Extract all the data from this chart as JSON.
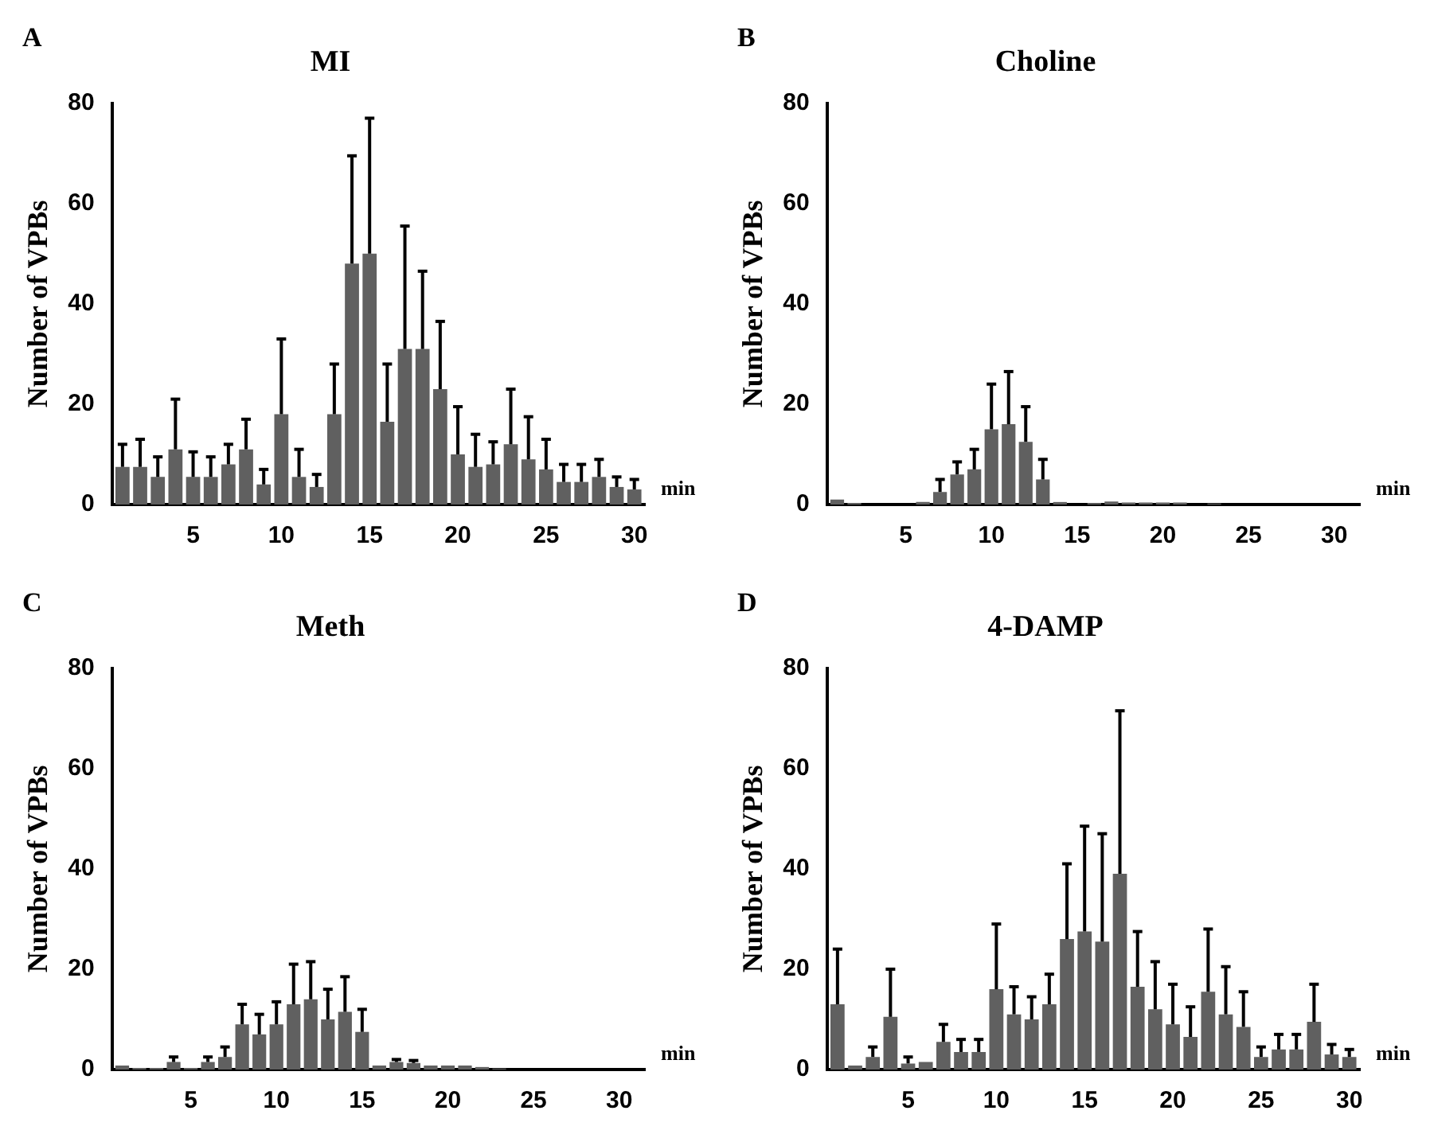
{
  "chart_data": [
    {
      "type": "bar",
      "title": "MI",
      "xlabel": "min",
      "ylabel": "Number of VPBs",
      "annotations": [
        "A"
      ],
      "color": "#606060",
      "grid": false,
      "x": [
        1,
        2,
        3,
        4,
        5,
        6,
        7,
        8,
        9,
        10,
        11,
        12,
        13,
        14,
        15,
        16,
        17,
        18,
        19,
        20,
        21,
        22,
        23,
        24,
        25,
        26,
        27,
        28,
        29,
        30
      ],
      "values": [
        7.5,
        7.5,
        5.5,
        11,
        5.5,
        5.5,
        8,
        11,
        4,
        18,
        5.5,
        3.5,
        18,
        48,
        50,
        16.5,
        31,
        31,
        23,
        10,
        7.5,
        8,
        12,
        9,
        7,
        4.5,
        4.5,
        5.5,
        3.5,
        3
      ],
      "errors": [
        [
          7.5,
          12
        ],
        [
          7.5,
          13
        ],
        [
          5.5,
          9.5
        ],
        [
          11,
          21
        ],
        [
          5.5,
          10.5
        ],
        [
          5.5,
          9.5
        ],
        [
          8,
          12
        ],
        [
          11,
          17
        ],
        [
          4,
          7
        ],
        [
          18,
          33
        ],
        [
          5.5,
          11
        ],
        [
          3.5,
          6
        ],
        [
          18,
          28
        ],
        [
          48,
          69.5
        ],
        [
          50,
          77
        ],
        [
          16.5,
          28
        ],
        [
          31,
          55.5
        ],
        [
          31,
          46.5
        ],
        [
          23,
          36.5
        ],
        [
          10,
          19.5
        ],
        [
          7.5,
          14
        ],
        [
          8,
          12.5
        ],
        [
          12,
          23
        ],
        [
          9,
          17.5
        ],
        [
          7,
          13
        ],
        [
          4.5,
          8
        ],
        [
          4.5,
          8
        ],
        [
          5.5,
          9
        ],
        [
          3.5,
          5.5
        ],
        [
          3,
          5
        ]
      ],
      "xlim": [
        0.4,
        30.6
      ],
      "xticks": [
        5,
        10,
        15,
        20,
        25,
        30
      ],
      "ylim": [
        0,
        80
      ],
      "yticks": [
        0,
        20,
        40,
        60,
        80
      ]
    },
    {
      "type": "bar",
      "title": "Choline",
      "xlabel": "min",
      "ylabel": "Number of VPBs",
      "annotations": [
        "B"
      ],
      "color": "#606060",
      "grid": false,
      "x": [
        1,
        2,
        3,
        4,
        5,
        6,
        7,
        8,
        9,
        10,
        11,
        12,
        13,
        14,
        15,
        16,
        17,
        18,
        19,
        20,
        21,
        22,
        23,
        24,
        25,
        26,
        27,
        28,
        29,
        30
      ],
      "values": [
        1,
        0.3,
        0,
        0,
        0,
        0.5,
        2.5,
        6,
        7,
        15,
        16,
        12.5,
        5,
        0.5,
        0,
        0.3,
        0.6,
        0.4,
        0.4,
        0.4,
        0.4,
        0,
        0.2,
        0,
        0,
        0,
        0,
        0,
        0,
        0
      ],
      "errors": [
        null,
        null,
        null,
        null,
        null,
        null,
        [
          2.5,
          5
        ],
        [
          6,
          8.5
        ],
        [
          7,
          11
        ],
        [
          15,
          24
        ],
        [
          16,
          26.5
        ],
        [
          12.5,
          19.5
        ],
        [
          5,
          9
        ],
        null,
        null,
        null,
        null,
        null,
        null,
        null,
        null,
        null,
        null,
        null,
        null,
        null,
        null,
        null,
        null,
        null
      ],
      "xlim": [
        0.4,
        31.5
      ],
      "xticks": [
        5,
        10,
        15,
        20,
        25,
        30
      ],
      "ylim": [
        0,
        80
      ],
      "yticks": [
        0,
        20,
        40,
        60,
        80
      ]
    },
    {
      "type": "bar",
      "title": "Meth",
      "xlabel": "min",
      "ylabel": "Number of VPBs",
      "annotations": [
        "C"
      ],
      "color": "#606060",
      "grid": false,
      "x": [
        1,
        2,
        3,
        4,
        5,
        6,
        7,
        8,
        9,
        10,
        11,
        12,
        13,
        14,
        15,
        16,
        17,
        18,
        19,
        20,
        21,
        22,
        23,
        24,
        25,
        26,
        27,
        28,
        29,
        30
      ],
      "values": [
        0.8,
        0.3,
        0.3,
        1.5,
        0.3,
        1.5,
        2.5,
        9,
        7,
        9,
        13,
        14,
        10,
        11.5,
        7.5,
        0.8,
        1.5,
        1.3,
        0.8,
        0.8,
        0.8,
        0.5,
        0.2,
        0,
        0,
        0,
        0,
        0,
        0,
        0
      ],
      "errors": [
        null,
        null,
        null,
        [
          1.5,
          2.5
        ],
        null,
        [
          1.5,
          2.5
        ],
        [
          2.5,
          4.5
        ],
        [
          9,
          13
        ],
        [
          7,
          11
        ],
        [
          9,
          13.5
        ],
        [
          13,
          21
        ],
        [
          14,
          21.5
        ],
        [
          10,
          16
        ],
        [
          11.5,
          18.5
        ],
        [
          7.5,
          12
        ],
        null,
        [
          1.5,
          2
        ],
        [
          1.3,
          1.8
        ],
        null,
        null,
        null,
        null,
        null,
        null,
        null,
        null,
        null,
        null,
        null,
        null
      ],
      "xlim": [
        0.4,
        31.5
      ],
      "xticks": [
        5,
        10,
        15,
        20,
        25,
        30
      ],
      "ylim": [
        0,
        80
      ],
      "yticks": [
        0,
        20,
        40,
        60,
        80
      ]
    },
    {
      "type": "bar",
      "title": "4-DAMP",
      "xlabel": "min",
      "ylabel": "Number of VPBs",
      "annotations": [
        "D"
      ],
      "color": "#606060",
      "grid": false,
      "x": [
        1,
        2,
        3,
        4,
        5,
        6,
        7,
        8,
        9,
        10,
        11,
        12,
        13,
        14,
        15,
        16,
        17,
        18,
        19,
        20,
        21,
        22,
        23,
        24,
        25,
        26,
        27,
        28,
        29,
        30
      ],
      "values": [
        13,
        0.8,
        2.5,
        10.5,
        1.2,
        1.5,
        5.5,
        3.5,
        3.5,
        16,
        11,
        10,
        13,
        26,
        27.5,
        25.5,
        39,
        16.5,
        12,
        9,
        6.5,
        15.5,
        11,
        8.5,
        2.5,
        4,
        4,
        9.5,
        3,
        2.5
      ],
      "errors": [
        [
          13,
          24
        ],
        null,
        [
          2.5,
          4.5
        ],
        [
          10.5,
          20
        ],
        [
          1.2,
          2.5
        ],
        null,
        [
          5.5,
          9
        ],
        [
          3.5,
          6
        ],
        [
          3.5,
          6
        ],
        [
          16,
          29
        ],
        [
          11,
          16.5
        ],
        [
          10,
          14.5
        ],
        [
          13,
          19
        ],
        [
          26,
          41
        ],
        [
          27.5,
          48.5
        ],
        [
          25.5,
          47
        ],
        [
          39,
          71.5
        ],
        [
          16.5,
          27.5
        ],
        [
          12,
          21.5
        ],
        [
          9,
          17
        ],
        [
          6.5,
          12.5
        ],
        [
          15.5,
          28
        ],
        [
          11,
          20.5
        ],
        [
          8.5,
          15.5
        ],
        [
          2.5,
          4.5
        ],
        [
          4,
          7
        ],
        [
          4,
          7
        ],
        [
          9.5,
          17
        ],
        [
          3,
          5
        ],
        [
          2.5,
          4
        ]
      ],
      "xlim": [
        0.4,
        30.6
      ],
      "xticks": [
        5,
        10,
        15,
        20,
        25,
        30
      ],
      "ylim": [
        0,
        80
      ],
      "yticks": [
        0,
        20,
        40,
        60,
        80
      ]
    }
  ]
}
